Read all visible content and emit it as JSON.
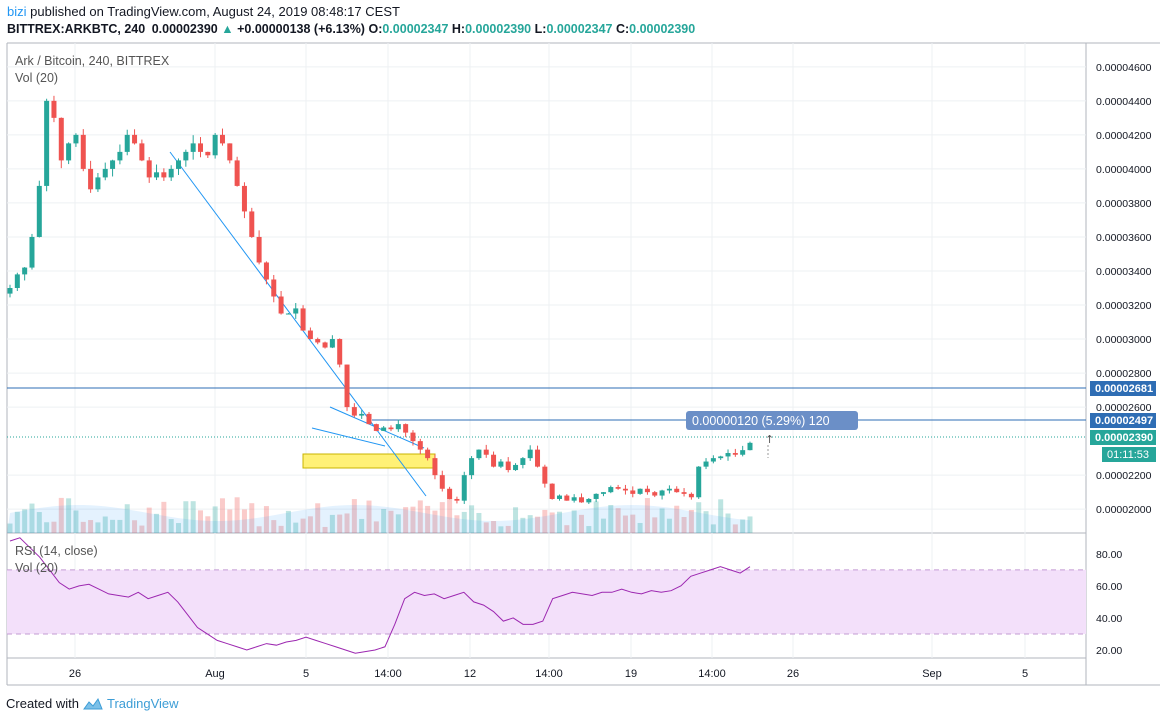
{
  "header": {
    "user": "bizi",
    "published": "published on TradingView.com, August 24, 2019 08:48:17 CEST",
    "symbol": "BITTREX:ARKBTC, 240",
    "last": "0.00002390",
    "change": "+0.00000138 (+6.13%)",
    "o_label": "O:",
    "o": "0.00002347",
    "h_label": "H:",
    "h": "0.00002390",
    "l_label": "L:",
    "l": "0.00002347",
    "c_label": "C:",
    "c": "0.00002390"
  },
  "pane_titles": {
    "main": "Ark / Bitcoin, 240, BITTREX",
    "vol": "Vol (20)",
    "rsi": "RSI (14, close)",
    "rsi_vol": "Vol (20)"
  },
  "badges": {
    "line1": "0.00002681",
    "line2": "0.00002497",
    "current": "0.00002390",
    "countdown": "01:11:53"
  },
  "measure_label": "0.00000120 (5.29%) 120",
  "footer": {
    "created": "Created with",
    "brand": "TradingView"
  },
  "colors": {
    "up": "#26a69a",
    "down": "#ef5350",
    "trend": "#2196f3",
    "hline": "#2e6db4",
    "rsi_line": "#9c27b0",
    "rsi_band": "#f3e0fa",
    "highlight": "#fff176",
    "badge": "#2e6db4",
    "current_badge": "#26a69a"
  },
  "chart_data": {
    "type": "candlestick",
    "symbol": "ARKBTC",
    "exchange": "BITTREX",
    "interval": "240",
    "y_ticks": [
      "0.00004600",
      "0.00004400",
      "0.00004200",
      "0.00004000",
      "0.00003800",
      "0.00003600",
      "0.00003400",
      "0.00003200",
      "0.00003000",
      "0.00002800",
      "0.00002600",
      "0.00002200",
      "0.00002000"
    ],
    "y_tick_values": [
      4.6e-05,
      4.4e-05,
      4.2e-05,
      4e-05,
      3.8e-05,
      3.6e-05,
      3.4e-05,
      3.2e-05,
      3e-05,
      2.8e-05,
      2.6e-05,
      2.2e-05,
      2e-05
    ],
    "ylim": [
      1.86e-05,
      4.74e-05
    ],
    "x_ticks": [
      "26",
      "Aug",
      "5",
      "14:00",
      "12",
      "14:00",
      "19",
      "14:00",
      "26",
      "Sep",
      "5"
    ],
    "rsi_ticks": [
      "80.00",
      "60.00",
      "40.00",
      "20.00"
    ],
    "rsi_tick_values": [
      80,
      60,
      40,
      20
    ],
    "rsi_ylim": [
      15,
      93
    ],
    "rsi_band": [
      30,
      70
    ],
    "horizontal_lines": [
      2.681e-05,
      2.497e-05
    ],
    "current_price": 2.39e-05,
    "close_series": [
      3.3e-05,
      3.38e-05,
      3.42e-05,
      3.6e-05,
      3.9e-05,
      4.4e-05,
      4.3e-05,
      4.05e-05,
      4.15e-05,
      4.2e-05,
      4e-05,
      3.88e-05,
      3.95e-05,
      4e-05,
      4.05e-05,
      4.1e-05,
      4.2e-05,
      4.15e-05,
      4.05e-05,
      3.95e-05,
      3.98e-05,
      3.95e-05,
      4e-05,
      4.05e-05,
      4.1e-05,
      4.15e-05,
      4.1e-05,
      4.08e-05,
      4.2e-05,
      4.15e-05,
      4.05e-05,
      3.9e-05,
      3.75e-05,
      3.6e-05,
      3.45e-05,
      3.35e-05,
      3.25e-05,
      3.15e-05,
      3.15e-05,
      3.18e-05,
      3.05e-05,
      3e-05,
      2.98e-05,
      2.95e-05,
      3e-05,
      2.85e-05,
      2.6e-05,
      2.55e-05,
      2.56e-05,
      2.5e-05,
      2.46e-05,
      2.48e-05,
      2.47e-05,
      2.5e-05,
      2.45e-05,
      2.4e-05,
      2.35e-05,
      2.3e-05,
      2.2e-05,
      2.12e-05,
      2.06e-05,
      2.05e-05,
      2.2e-05,
      2.3e-05,
      2.35e-05,
      2.32e-05,
      2.25e-05,
      2.28e-05,
      2.23e-05,
      2.26e-05,
      2.3e-05,
      2.35e-05,
      2.25e-05,
      2.15e-05,
      2.06e-05,
      2.08e-05,
      2.05e-05,
      2.07e-05,
      2.04e-05,
      2.06e-05,
      2.09e-05,
      2.1e-05,
      2.13e-05,
      2.12e-05,
      2.11e-05,
      2.09e-05,
      2.12e-05,
      2.1e-05,
      2.08e-05,
      2.11e-05,
      2.12e-05,
      2.1e-05,
      2.09e-05,
      2.07e-05,
      2.25e-05,
      2.28e-05,
      2.3e-05,
      2.31e-05,
      2.33e-05,
      2.32e-05,
      2.347e-05,
      2.39e-05
    ],
    "rsi_series": [
      88,
      90,
      84,
      78,
      70,
      62,
      58,
      60,
      61,
      58,
      55,
      54,
      53,
      56,
      52,
      54,
      56,
      50,
      42,
      34,
      30,
      26,
      24,
      22,
      20,
      22,
      24,
      23,
      25,
      26,
      28,
      26,
      24,
      22,
      20,
      18,
      19,
      20,
      22,
      36,
      52,
      56,
      54,
      55,
      52,
      54,
      56,
      50,
      48,
      44,
      38,
      40,
      36,
      36,
      38,
      52,
      54,
      56,
      55,
      54,
      56,
      56,
      58,
      56,
      55,
      57,
      56,
      57,
      60,
      66,
      68,
      70,
      72,
      70,
      68,
      72
    ],
    "volume_note": "volume bars with 20-period MA shown at bottom of main pane"
  }
}
